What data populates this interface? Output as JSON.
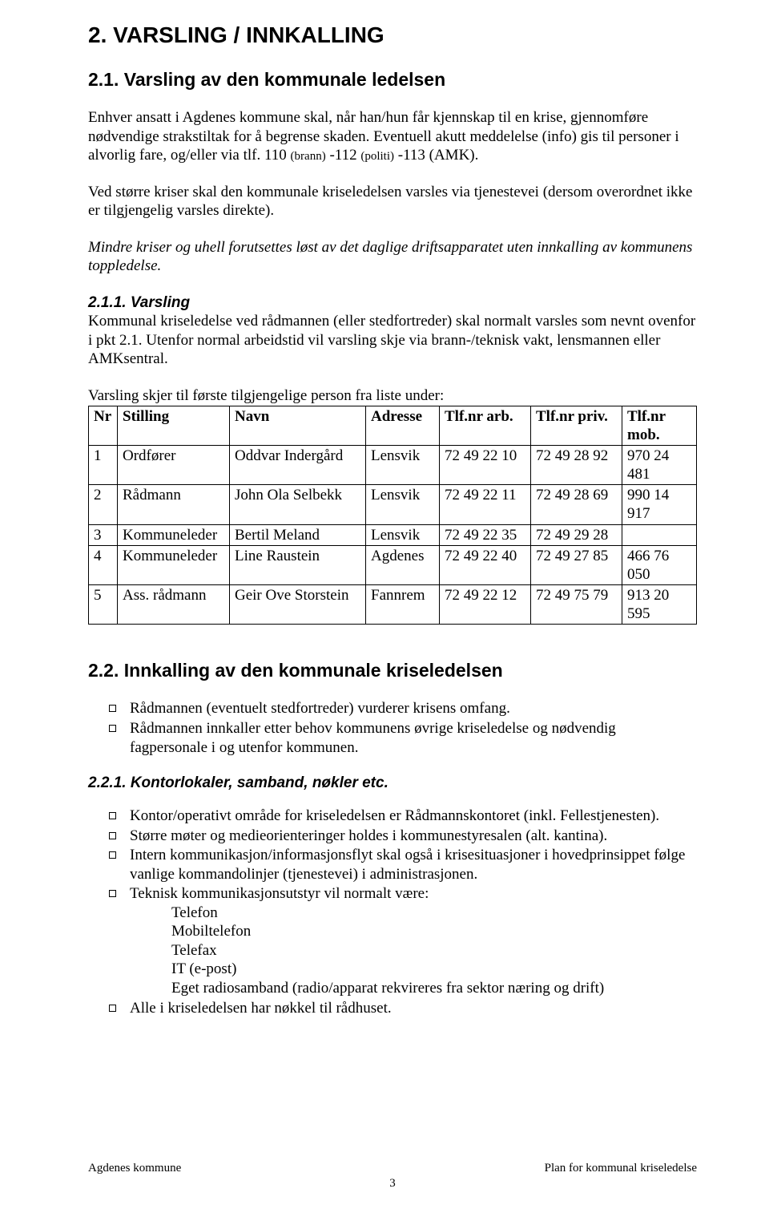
{
  "headings": {
    "h1": "2.  VARSLING / INNKALLING",
    "h2_1": "2.1. Varsling av den kommunale ledelsen",
    "h3_1_runin": "2.1.1. Varsling",
    "h2_2": "2.2. Innkalling av den kommunale kriseledelsen",
    "h3_2": "2.2.1. Kontorlokaler, samband, nøkler etc."
  },
  "paragraphs": {
    "p1a": "Enhver ansatt i Agdenes kommune skal, når han/hun får kjennskap til en krise, gjennomføre nødvendige strakstiltak for å begrense skaden. Eventuell akutt meddelelse (info) gis til personer i alvorlig fare, og/eller via tlf. 110 ",
    "p1_small": "(brann)",
    "p1b": " -112 ",
    "p1_small2": "(politi)",
    "p1c": " -113 (AMK).",
    "p2": "Ved større kriser skal den kommunale kriseledelsen varsles via tjenestevei (dersom overordnet ikke er tilgjengelig varsles direkte).",
    "p3": "Mindre kriser og uhell forutsettes løst av det daglige driftsapparatet uten innkalling av kommunens toppledelse.",
    "p4": "Kommunal kriseledelse ved rådmannen (eller stedfortreder) skal normalt varsles som nevnt ovenfor i pkt 2.1. Utenfor normal arbeidstid vil varsling skje via brann-/teknisk vakt, lensmannen eller AMKsentral.",
    "p5": "Varsling skjer til første tilgjengelige person fra liste under:"
  },
  "table": {
    "columns": [
      "Nr",
      "Stilling",
      "Navn",
      "Adresse",
      "Tlf.nr arb.",
      "Tlf.nr priv.",
      "Tlf.nr mob."
    ],
    "rows": [
      [
        "1",
        "Ordfører",
        "Oddvar Indergård",
        "Lensvik",
        "72 49 22 10",
        "72 49 28 92",
        "970 24 481"
      ],
      [
        "2",
        "Rådmann",
        "John Ola Selbekk",
        "Lensvik",
        "72 49 22 11",
        "72 49 28 69",
        "990 14 917"
      ],
      [
        "3",
        "Kommuneleder",
        "Bertil Meland",
        "Lensvik",
        "72 49 22 35",
        "72 49 29 28",
        ""
      ],
      [
        "4",
        "Kommuneleder",
        "Line Raustein",
        "Agdenes",
        "72 49 22 40",
        "72 49 27 85",
        "466 76 050"
      ],
      [
        "5",
        "Ass. rådmann",
        "Geir Ove Storstein",
        "Fannrem",
        "72 49 22 12",
        "72 49 75 79",
        "913 20 595"
      ]
    ],
    "col_widths": [
      "36px",
      "140px",
      "170px",
      "92px",
      "114px",
      "114px",
      "auto"
    ]
  },
  "list22": [
    "Rådmannen (eventuelt stedfortreder) vurderer krisens omfang.",
    "Rådmannen innkaller etter behov kommunens øvrige kriseledelse og nødvendig fagpersonale i og utenfor kommunen."
  ],
  "list221_outer": [
    "Kontor/operativt område for kriseledelsen er Rådmannskontoret (inkl. Fellestjenesten).",
    "Større møter og medieorienteringer holdes i kommunestyresalen (alt. kantina).",
    "Intern kommunikasjon/informasjonsflyt skal også i krisesituasjoner i hovedprinsippet følge vanlige kommandolinjer (tjenestevei) i administrasjonen.",
    "Teknisk kommunikasjonsutstyr vil normalt være:"
  ],
  "list221_inner": [
    "Telefon",
    "Mobiltelefon",
    "Telefax",
    "IT (e-post)",
    "Eget radiosamband (radio/apparat rekvireres fra sektor næring og drift)"
  ],
  "list221_last": "Alle i kriseledelsen har nøkkel til rådhuset.",
  "footer": {
    "left": "Agdenes kommune",
    "right": "Plan for kommunal kriseledelse",
    "page": "3"
  }
}
